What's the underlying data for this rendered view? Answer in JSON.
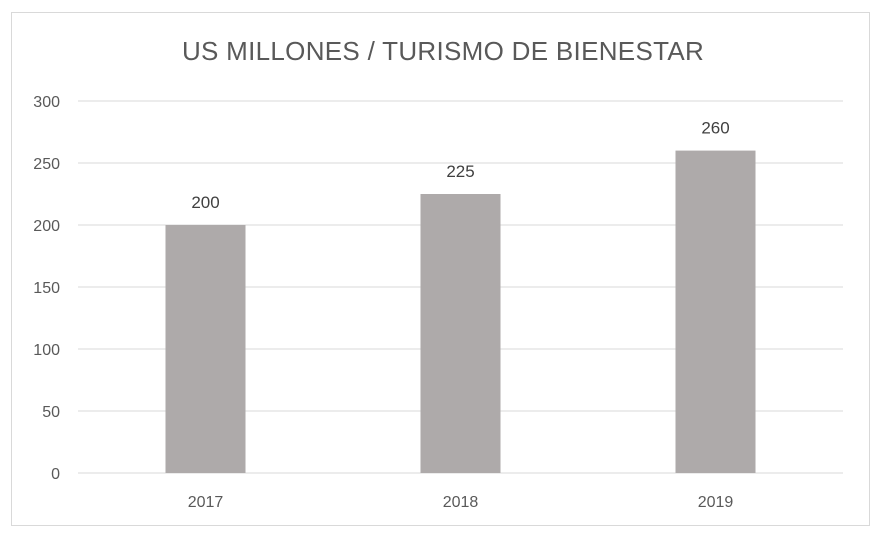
{
  "chart_data": {
    "type": "bar",
    "title": "US MILLONES / TURISMO DE BIENESTAR",
    "categories": [
      "2017",
      "2018",
      "2019"
    ],
    "values": [
      200,
      225,
      260
    ],
    "data_labels": [
      "200",
      "225",
      "260"
    ],
    "y_ticks": [
      "0",
      "50",
      "100",
      "150",
      "200",
      "250",
      "300"
    ],
    "ylim": [
      0,
      300
    ],
    "xlabel": "",
    "ylabel": "",
    "grid": true,
    "legend": "none",
    "colors": {
      "bar": "#aeaaaa",
      "grid": "#d9d9d9",
      "text": "#595959",
      "frame": "#d9d9d9"
    }
  }
}
